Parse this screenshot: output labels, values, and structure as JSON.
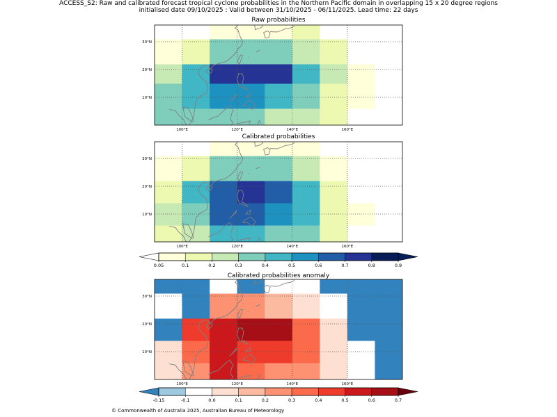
{
  "header": {
    "title_line1": "ACCESS_S2: Raw and calibrated forecast tropical cyclone probabilities in the Northern Pacific domain in overlapping 15 x 20 degree regions",
    "title_line2": "initialised date 09/10/2025 :  Valid between 31/10/2025 - 06/11/2025. Lead time: 22 days"
  },
  "footer": {
    "copyright": "© Commonwealth of Australia 2025, Australian Bureau of Meteorology"
  },
  "colors": {
    "coast": "#808080",
    "prob_scale": [
      "#ffffd9",
      "#edf8b1",
      "#c7e9b4",
      "#7fcdbb",
      "#41b6c4",
      "#1d91c0",
      "#225ea8",
      "#253494",
      "#081d58"
    ],
    "prob_under": "#ffffff",
    "anom_scale": [
      "#9ecae1",
      "#ffffff",
      "#fee0d2",
      "#fcbba1",
      "#fc9272",
      "#fb6a4a",
      "#ef3b2c",
      "#cb181d",
      "#a50f15"
    ],
    "anom_under": "#3182bd",
    "anom_over": "#67000d"
  },
  "chart_data": [
    {
      "type": "heatmap",
      "title": "Raw probabilities",
      "x_ticks": [
        "100°E",
        "120°E",
        "140°E",
        "160°E"
      ],
      "y_ticks": [
        "10°N",
        "20°N",
        "30°N"
      ],
      "xlim": [
        90,
        180
      ],
      "ylim": [
        0,
        36
      ],
      "x_edges": [
        90,
        100,
        110,
        120,
        130,
        140,
        150,
        160,
        170,
        180
      ],
      "y_edges": [
        0,
        6,
        15,
        22,
        31,
        36
      ],
      "values": [
        [
          0.3,
          0.3,
          0.3,
          0.3,
          0.2,
          0.2,
          0.1,
          0.0,
          0.0
        ],
        [
          0.3,
          0.4,
          0.5,
          0.5,
          0.4,
          0.3,
          0.1,
          0.05,
          0.0
        ],
        [
          0.2,
          0.4,
          0.7,
          0.7,
          0.7,
          0.4,
          0.2,
          0.05,
          0.0
        ],
        [
          0.05,
          0.1,
          0.3,
          0.3,
          0.3,
          0.2,
          0.1,
          0.0,
          0.0
        ],
        [
          0.0,
          0.0,
          0.05,
          0.05,
          0.05,
          0.1,
          0.0,
          0.0,
          0.0
        ]
      ]
    },
    {
      "type": "heatmap",
      "title": "Calibrated probabilities",
      "x_ticks": [
        "100°E",
        "120°E",
        "140°E",
        "160°E"
      ],
      "y_ticks": [
        "10°N",
        "20°N",
        "30°N"
      ],
      "xlim": [
        90,
        180
      ],
      "ylim": [
        0,
        36
      ],
      "x_edges": [
        90,
        100,
        110,
        120,
        130,
        140,
        150,
        160,
        170,
        180
      ],
      "y_edges": [
        0,
        6,
        14,
        22,
        31,
        36
      ],
      "values": [
        [
          0.1,
          0.2,
          0.4,
          0.4,
          0.3,
          0.3,
          0.1,
          0.0,
          0.0
        ],
        [
          0.2,
          0.3,
          0.6,
          0.6,
          0.5,
          0.4,
          0.1,
          0.05,
          0.0
        ],
        [
          0.1,
          0.4,
          0.6,
          0.7,
          0.6,
          0.4,
          0.1,
          0.0,
          0.0
        ],
        [
          0.05,
          0.1,
          0.3,
          0.3,
          0.3,
          0.2,
          0.05,
          0.0,
          0.0
        ],
        [
          0.0,
          0.0,
          0.05,
          0.05,
          0.05,
          0.05,
          0.0,
          0.0,
          0.0
        ]
      ]
    },
    {
      "type": "heatmap",
      "title": "Calibrated probabilities anomaly",
      "x_ticks": [
        "100°E",
        "120°E",
        "140°E",
        "160°E"
      ],
      "y_ticks": [
        "10°N",
        "20°N",
        "30°N"
      ],
      "xlim": [
        90,
        180
      ],
      "ylim": [
        0,
        36
      ],
      "x_edges": [
        90,
        100,
        110,
        120,
        130,
        140,
        150,
        160,
        170,
        180
      ],
      "y_edges": [
        0,
        6,
        14,
        22,
        31,
        36
      ],
      "values": [
        [
          0.0,
          0.2,
          0.5,
          0.3,
          0.2,
          0.2,
          0.0,
          -0.1,
          -0.2
        ],
        [
          0.0,
          0.3,
          0.5,
          0.4,
          0.4,
          0.3,
          0.0,
          -0.1,
          -0.2
        ],
        [
          -0.2,
          0.4,
          0.5,
          0.6,
          0.6,
          0.3,
          0.0,
          -0.2,
          -0.2
        ],
        [
          -0.1,
          -0.2,
          0.2,
          0.2,
          0.1,
          0.0,
          -0.1,
          -0.2,
          -0.2
        ],
        [
          -0.2,
          -0.2,
          -0.1,
          -0.2,
          -0.1,
          -0.1,
          -0.2,
          -0.2,
          -0.2
        ]
      ]
    }
  ],
  "colorbars": [
    {
      "name": "probability",
      "ticks": [
        "0.05",
        "0.1",
        "0.2",
        "0.3",
        "0.4",
        "0.5",
        "0.6",
        "0.7",
        "0.8",
        "0.9"
      ]
    },
    {
      "name": "anomaly",
      "ticks": [
        "-0.15",
        "-0.1",
        "0.0",
        "0.1",
        "0.2",
        "0.3",
        "0.4",
        "0.5",
        "0.6",
        "0.7"
      ]
    }
  ]
}
